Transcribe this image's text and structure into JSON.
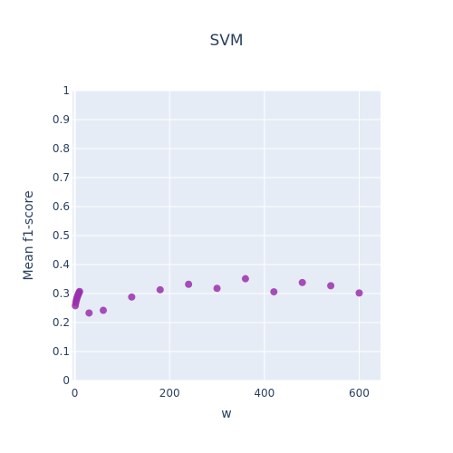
{
  "chart_data": {
    "type": "scatter",
    "title": "SVM",
    "xlabel": "w",
    "ylabel": "Mean f1-score",
    "xlim": [
      -5,
      645
    ],
    "ylim": [
      0,
      1
    ],
    "x_ticks": [
      0,
      200,
      400,
      600
    ],
    "y_ticks": [
      0,
      0.1,
      0.2,
      0.3,
      0.4,
      0.5,
      0.6,
      0.7,
      0.8,
      0.9,
      1
    ],
    "grid": true,
    "marker_color": "#9b30ad",
    "plot_bg": "#e5ecf6",
    "series": [
      {
        "x": [
          1,
          2,
          3,
          4,
          5,
          6,
          7,
          8,
          9,
          10,
          30,
          60,
          120,
          180,
          240,
          300,
          360,
          420,
          480,
          540,
          600
        ],
        "y": [
          0.258,
          0.268,
          0.276,
          0.282,
          0.287,
          0.292,
          0.296,
          0.3,
          0.304,
          0.307,
          0.233,
          0.242,
          0.288,
          0.313,
          0.332,
          0.318,
          0.351,
          0.306,
          0.338,
          0.327,
          0.302
        ]
      }
    ]
  }
}
